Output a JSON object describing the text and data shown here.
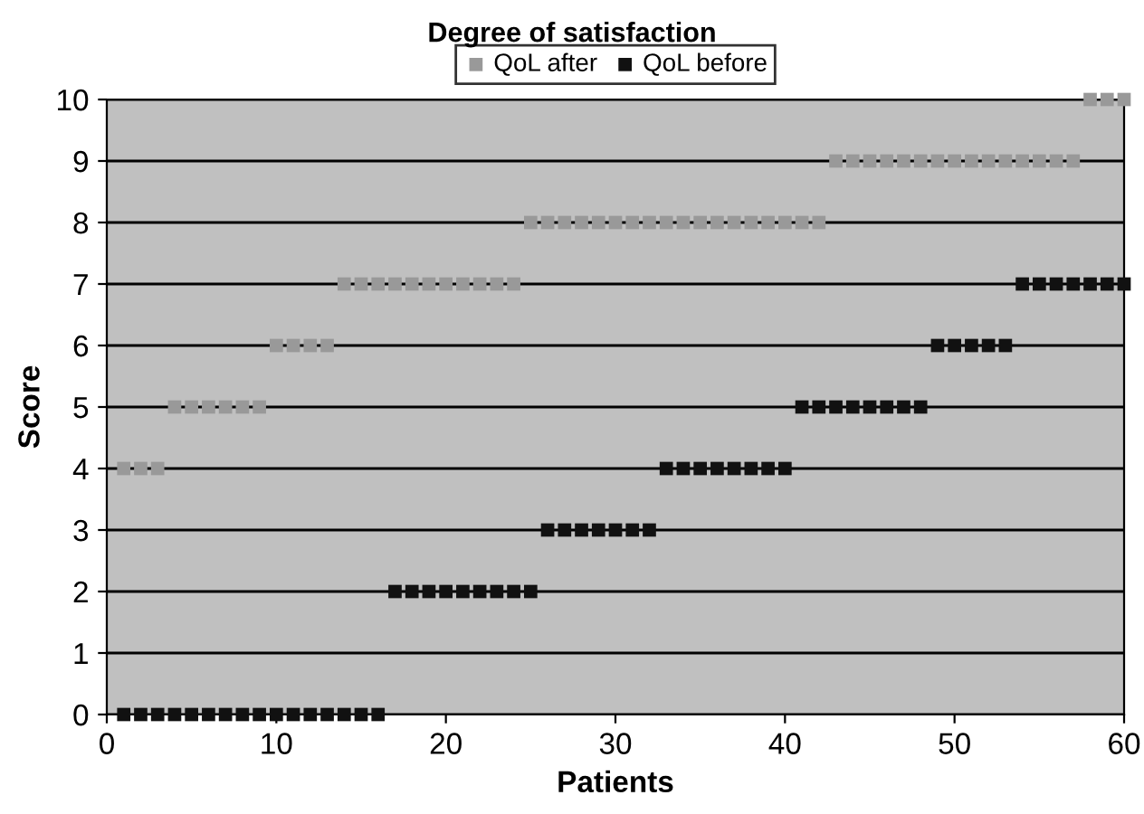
{
  "chart_data": {
    "type": "scatter",
    "title": "Degree of satisfaction",
    "xlabel": "Patients",
    "ylabel": "Score",
    "x": [
      1,
      2,
      3,
      4,
      5,
      6,
      7,
      8,
      9,
      10,
      11,
      12,
      13,
      14,
      15,
      16,
      17,
      18,
      19,
      20,
      21,
      22,
      23,
      24,
      25,
      26,
      27,
      28,
      29,
      30,
      31,
      32,
      33,
      34,
      35,
      36,
      37,
      38,
      39,
      40,
      41,
      42,
      43,
      44,
      45,
      46,
      47,
      48,
      49,
      50,
      51,
      52,
      53,
      54,
      55,
      56,
      57,
      58,
      59,
      60
    ],
    "series": [
      {
        "name": "QoL after",
        "color": "#999999",
        "values": [
          4,
          4,
          4,
          5,
          5,
          5,
          5,
          5,
          5,
          6,
          6,
          6,
          6,
          7,
          7,
          7,
          7,
          7,
          7,
          7,
          7,
          7,
          7,
          7,
          8,
          8,
          8,
          8,
          8,
          8,
          8,
          8,
          8,
          8,
          8,
          8,
          8,
          8,
          8,
          8,
          8,
          8,
          9,
          9,
          9,
          9,
          9,
          9,
          9,
          9,
          9,
          9,
          9,
          9,
          9,
          9,
          9,
          10,
          10,
          10
        ]
      },
      {
        "name": "QoL before",
        "color": "#111111",
        "values": [
          0,
          0,
          0,
          0,
          0,
          0,
          0,
          0,
          0,
          0,
          0,
          0,
          0,
          0,
          0,
          0,
          2,
          2,
          2,
          2,
          2,
          2,
          2,
          2,
          2,
          3,
          3,
          3,
          3,
          3,
          3,
          3,
          4,
          4,
          4,
          4,
          4,
          4,
          4,
          4,
          5,
          5,
          5,
          5,
          5,
          5,
          5,
          5,
          6,
          6,
          6,
          6,
          6,
          7,
          7,
          7,
          7,
          7,
          7,
          7
        ]
      }
    ],
    "xlim": [
      0,
      60
    ],
    "xticks": [
      0,
      10,
      20,
      30,
      40,
      50,
      60
    ],
    "ylim": [
      0,
      10
    ],
    "yticks": [
      0,
      1,
      2,
      3,
      4,
      5,
      6,
      7,
      8,
      9,
      10
    ],
    "grid": "y",
    "legend": "top",
    "marker": "square"
  }
}
